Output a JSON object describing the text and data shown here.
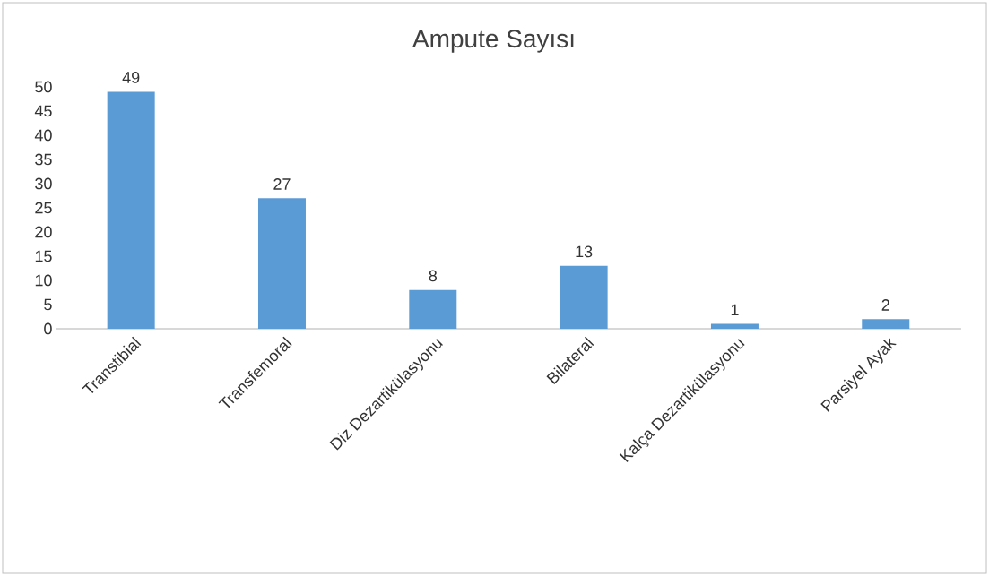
{
  "chart_data": {
    "type": "bar",
    "title": "Ampute Sayısı",
    "categories": [
      "Transtibial",
      "Transfemoral",
      "Diz Dezartikülasyonu",
      "Bilateral",
      "Kalça Dezartikülasyonu",
      "Parsiyel Ayak"
    ],
    "values": [
      49,
      27,
      8,
      13,
      1,
      2
    ],
    "color": "#5b9bd5",
    "ylim": [
      0,
      50
    ],
    "yticks": [
      0,
      5,
      10,
      15,
      20,
      25,
      30,
      35,
      40,
      45,
      50
    ],
    "data_labels": true,
    "grid": false
  }
}
